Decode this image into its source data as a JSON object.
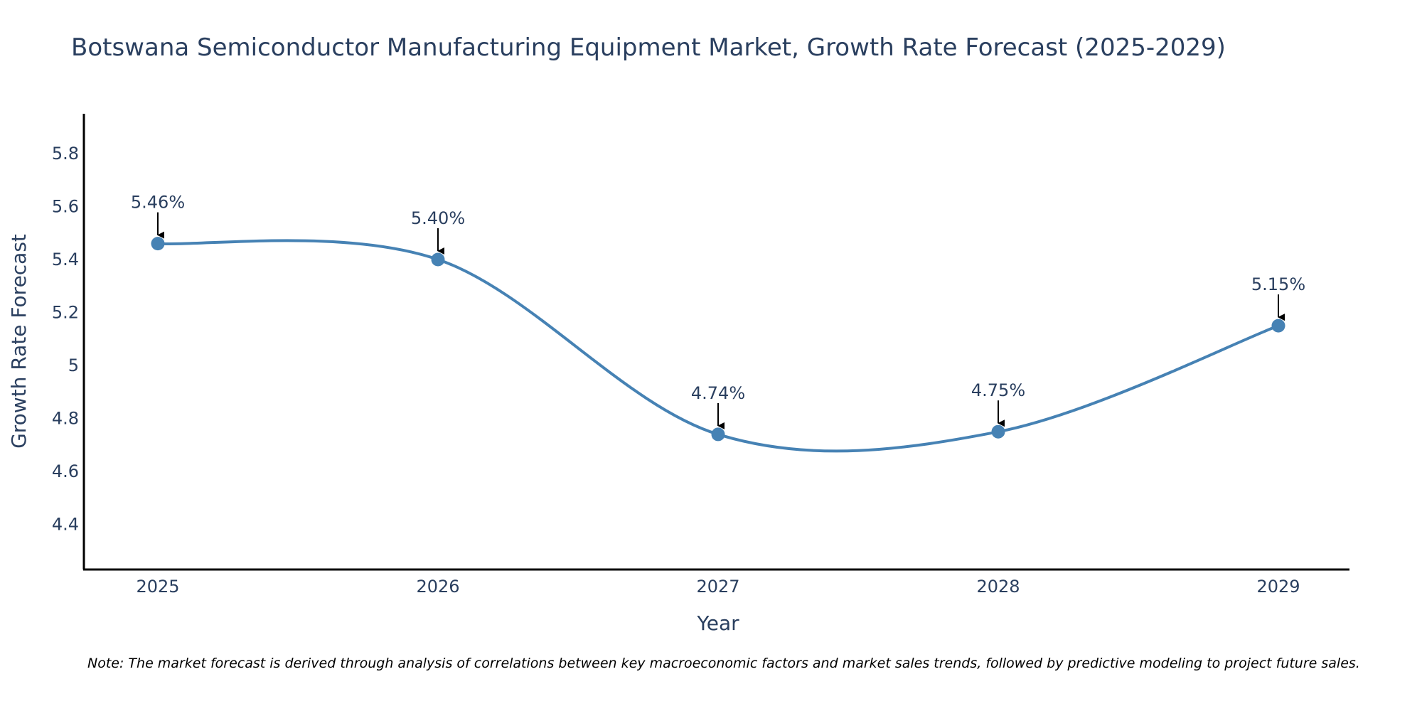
{
  "chart_data": {
    "type": "line",
    "title": "Botswana Semiconductor Manufacturing Equipment Market, Growth Rate Forecast (2025-2029)",
    "xlabel": "Year",
    "ylabel": "Growth Rate Forecast",
    "x": [
      "2025",
      "2026",
      "2027",
      "2028",
      "2029"
    ],
    "values": [
      5.46,
      5.4,
      4.74,
      4.75,
      5.15
    ],
    "data_labels": [
      "5.46%",
      "5.40%",
      "4.74%",
      "4.75%",
      "5.15%"
    ],
    "ylim": [
      4.23,
      5.95
    ],
    "yticks": [
      4.4,
      4.6,
      4.8,
      5,
      5.2,
      5.4,
      5.6,
      5.8
    ],
    "ytick_labels": [
      "4.4",
      "4.6",
      "4.8",
      "5",
      "5.2",
      "5.4",
      "5.6",
      "5.8"
    ],
    "grid": false,
    "line_color": "#4682b4",
    "marker_color": "#4682b4",
    "text_color": "#2a3f5f",
    "axis_color": "#000000"
  },
  "note": "Note: The market forecast is derived through analysis of correlations between key macroeconomic factors and market sales trends, followed by predictive modeling to project future sales."
}
